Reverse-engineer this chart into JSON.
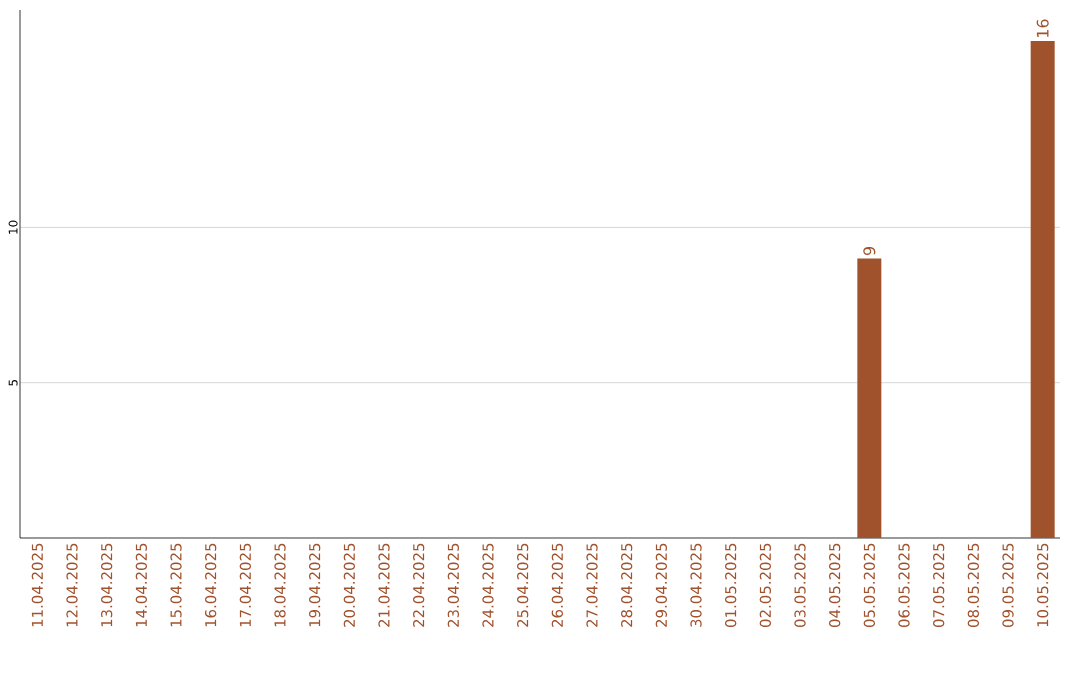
{
  "chart_data": {
    "type": "bar",
    "categories": [
      "11.04.2025",
      "12.04.2025",
      "13.04.2025",
      "14.04.2025",
      "15.04.2025",
      "16.04.2025",
      "17.04.2025",
      "18.04.2025",
      "19.04.2025",
      "20.04.2025",
      "21.04.2025",
      "22.04.2025",
      "23.04.2025",
      "24.04.2025",
      "25.04.2025",
      "26.04.2025",
      "27.04.2025",
      "28.04.2025",
      "29.04.2025",
      "30.04.2025",
      "01.05.2025",
      "02.05.2025",
      "03.05.2025",
      "04.05.2025",
      "05.05.2025",
      "06.05.2025",
      "07.05.2025",
      "08.05.2025",
      "09.05.2025",
      "10.05.2025"
    ],
    "values": [
      0,
      0,
      0,
      0,
      0,
      0,
      0,
      0,
      0,
      0,
      0,
      0,
      0,
      0,
      0,
      0,
      0,
      0,
      0,
      0,
      0,
      0,
      0,
      0,
      9,
      0,
      0,
      0,
      0,
      16
    ],
    "value_labels": [
      null,
      null,
      null,
      null,
      null,
      null,
      null,
      null,
      null,
      null,
      null,
      null,
      null,
      null,
      null,
      null,
      null,
      null,
      null,
      null,
      null,
      null,
      null,
      null,
      "9",
      null,
      null,
      null,
      null,
      "16"
    ],
    "color": "#a0522d",
    "ylim": [
      0,
      17
    ],
    "yticks": [
      5,
      10
    ],
    "grid": "y"
  }
}
